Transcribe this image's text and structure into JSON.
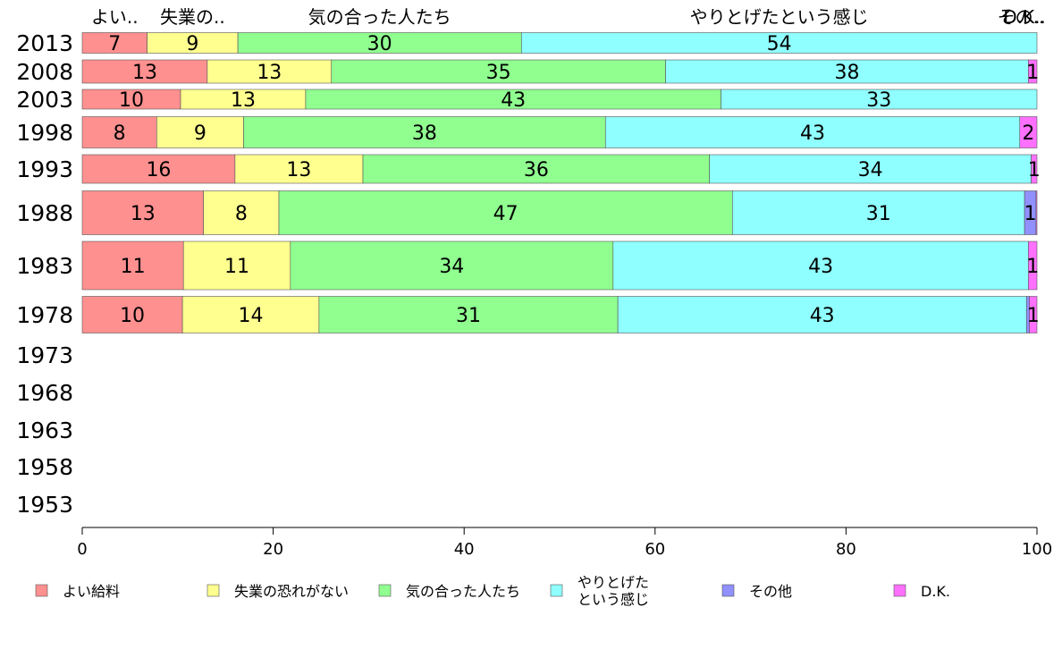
{
  "chart_data": {
    "type": "bar",
    "orientation": "horizontal",
    "stacked": true,
    "title": "",
    "xlabel": "",
    "ylabel": "",
    "xlim": [
      0,
      100
    ],
    "x_ticks": [
      "0",
      "20",
      "40",
      "60",
      "80",
      "100"
    ],
    "categories": [
      "2013",
      "2008",
      "2003",
      "1998",
      "1993",
      "1988",
      "1983",
      "1978",
      "1973",
      "1968",
      "1963",
      "1958",
      "1953"
    ],
    "top_labels": [
      "よい..",
      "失業の..",
      "気の合った人たち",
      "やりとげたという感じ",
      "その..",
      "D.K.."
    ],
    "series": [
      {
        "name": "よい給料",
        "color": "#ff9090",
        "values": [
          6.8,
          13.1,
          10.3,
          7.8,
          16.0,
          12.7,
          10.6,
          10.5,
          null,
          null,
          null,
          null,
          null
        ],
        "labels": [
          "7",
          "13",
          "10",
          "8",
          "16",
          "13",
          "11",
          "10",
          "",
          "",
          "",
          "",
          ""
        ]
      },
      {
        "name": "失業の恐れがない",
        "color": "#ffff90",
        "values": [
          9.5,
          13.0,
          13.1,
          9.1,
          13.4,
          7.9,
          11.2,
          14.3,
          null,
          null,
          null,
          null,
          null
        ],
        "labels": [
          "9",
          "13",
          "13",
          "9",
          "13",
          "8",
          "11",
          "14",
          "",
          "",
          "",
          "",
          ""
        ]
      },
      {
        "name": "気の合った人たち",
        "color": "#90ff90",
        "values": [
          29.7,
          35.0,
          43.5,
          37.9,
          36.3,
          47.5,
          33.8,
          31.3,
          null,
          null,
          null,
          null,
          null
        ],
        "labels": [
          "30",
          "35",
          "43",
          "38",
          "36",
          "47",
          "34",
          "31",
          "",
          "",
          "",
          "",
          ""
        ]
      },
      {
        "name": "やりとげたという感じ",
        "color": "#90ffff",
        "values": [
          54.0,
          38.0,
          33.1,
          43.4,
          33.7,
          30.6,
          43.5,
          42.8,
          null,
          null,
          null,
          null,
          null
        ],
        "labels": [
          "54",
          "38",
          "33",
          "43",
          "34",
          "31",
          "43",
          "43",
          "",
          "",
          "",
          "",
          ""
        ]
      },
      {
        "name": "その他",
        "color": "#9090ff",
        "values": [
          0,
          0,
          0,
          0,
          0,
          1.2,
          0,
          0.3,
          null,
          null,
          null,
          null,
          null
        ],
        "labels": [
          "",
          "",
          "",
          "",
          "",
          "1",
          "",
          "",
          "",
          "",
          "",
          "",
          ""
        ]
      },
      {
        "name": "D.K.",
        "color": "#ff70ff",
        "values": [
          0,
          0.9,
          0,
          1.8,
          0.6,
          0.1,
          0.9,
          0.8,
          null,
          null,
          null,
          null,
          null
        ],
        "labels": [
          "",
          "1",
          "",
          "2",
          "1",
          "",
          "1",
          "1",
          "",
          "",
          "",
          "",
          ""
        ]
      }
    ],
    "legend": {
      "position": "bottom",
      "columns": 6
    }
  }
}
